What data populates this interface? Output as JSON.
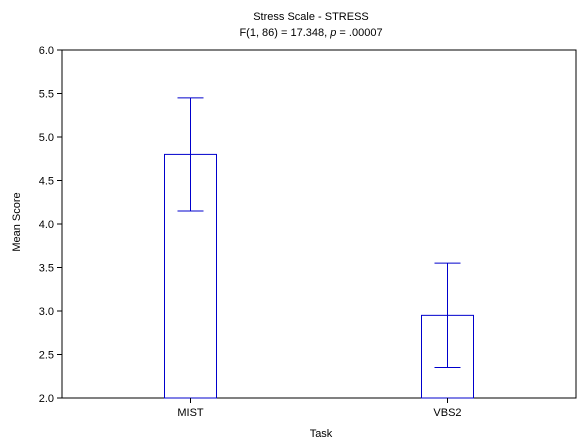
{
  "chart_data": {
    "type": "bar",
    "title": "Stress Scale - STRESS",
    "subtitle_prefix": "F(1, 86) = 17.348, ",
    "subtitle_p": "p",
    "subtitle_suffix": " = .00007",
    "xlabel": "Task",
    "ylabel": "Mean Score",
    "categories": [
      "MIST",
      "VBS2"
    ],
    "values": [
      4.8,
      2.95
    ],
    "error_low": [
      4.15,
      2.35
    ],
    "error_high": [
      5.45,
      3.55
    ],
    "ylim": [
      2.0,
      6.0
    ],
    "yticks": [
      "2.0",
      "2.5",
      "3.0",
      "3.5",
      "4.0",
      "4.5",
      "5.0",
      "5.5",
      "6.0"
    ],
    "grid": false,
    "bar_color": "#0000cc",
    "axis_color": "#000000"
  }
}
